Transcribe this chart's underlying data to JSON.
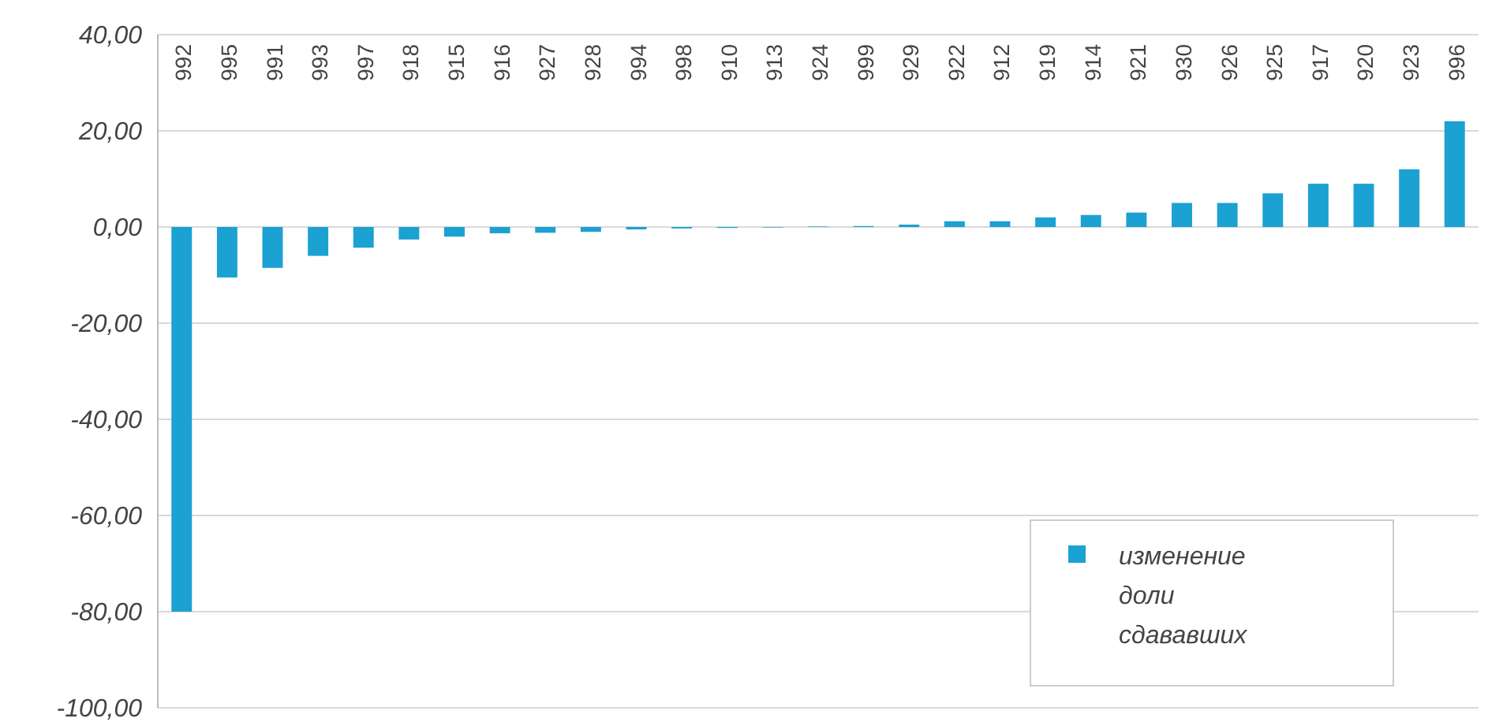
{
  "chart_data": {
    "type": "bar",
    "categories": [
      "992",
      "995",
      "991",
      "993",
      "997",
      "918",
      "915",
      "916",
      "927",
      "928",
      "994",
      "998",
      "910",
      "913",
      "924",
      "999",
      "929",
      "922",
      "912",
      "919",
      "914",
      "921",
      "930",
      "926",
      "925",
      "917",
      "920",
      "923",
      "996"
    ],
    "series": [
      {
        "name": "изменение доли сдававших",
        "color": "#1ba1d2",
        "values": [
          -80,
          -10.5,
          -8.5,
          -6,
          -4.3,
          -2.6,
          -2,
          -1.3,
          -1.2,
          -1,
          -0.5,
          -0.3,
          -0.2,
          -0.1,
          0.1,
          0.2,
          0.5,
          1.2,
          1.2,
          2,
          2.5,
          3,
          5,
          5,
          7,
          9,
          9,
          12,
          22
        ]
      }
    ],
    "ylim": [
      -100,
      40
    ],
    "yticks": [
      {
        "value": -100,
        "label": "-100,00"
      },
      {
        "value": -80,
        "label": "-80,00"
      },
      {
        "value": -60,
        "label": "-60,00"
      },
      {
        "value": -40,
        "label": "-40,00"
      },
      {
        "value": -20,
        "label": "-20,00"
      },
      {
        "value": 0,
        "label": "0,00"
      },
      {
        "value": 20,
        "label": "20,00"
      },
      {
        "value": 40,
        "label": "40,00"
      }
    ],
    "grid": "y",
    "legend": "bottom right"
  }
}
